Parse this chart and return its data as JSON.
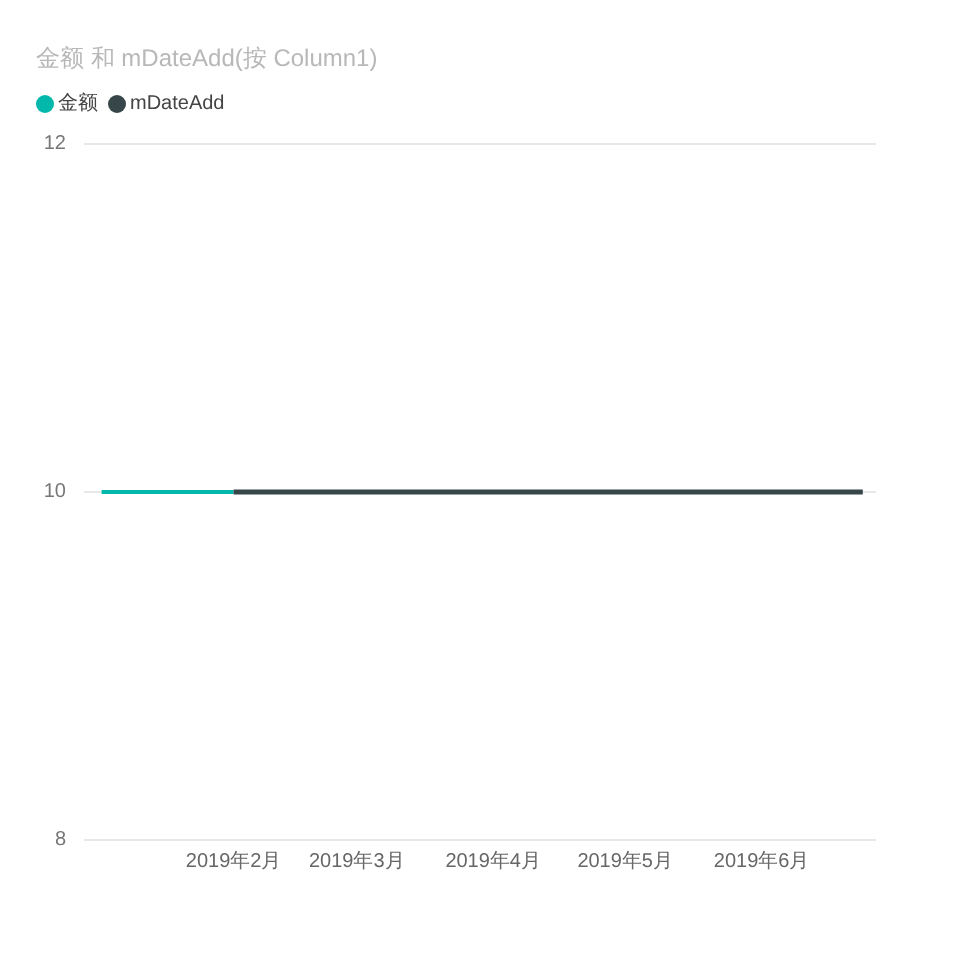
{
  "chart_data": {
    "type": "line",
    "title": "金额 和 mDateAdd(按 Column1)",
    "series": [
      {
        "name": "金额",
        "color": "#01b8aa",
        "x": [
          "2019-01-02",
          "2019-02-01"
        ],
        "values": [
          10,
          10
        ]
      },
      {
        "name": "mDateAdd",
        "color": "#374649",
        "x": [
          "2019-02-01",
          "2019-06-24"
        ],
        "values": [
          10,
          10
        ]
      }
    ],
    "xlim": [
      "2018-12-29",
      "2019-06-27"
    ],
    "xticks": [
      {
        "value": "2019-02-01",
        "label": "2019年2月"
      },
      {
        "value": "2019-03-01",
        "label": "2019年3月"
      },
      {
        "value": "2019-04-01",
        "label": "2019年4月"
      },
      {
        "value": "2019-05-01",
        "label": "2019年5月"
      },
      {
        "value": "2019-06-01",
        "label": "2019年6月"
      }
    ],
    "ylim": [
      8,
      12
    ],
    "yticks": [
      8,
      10,
      12
    ],
    "grid": "y",
    "legend": "top left"
  }
}
